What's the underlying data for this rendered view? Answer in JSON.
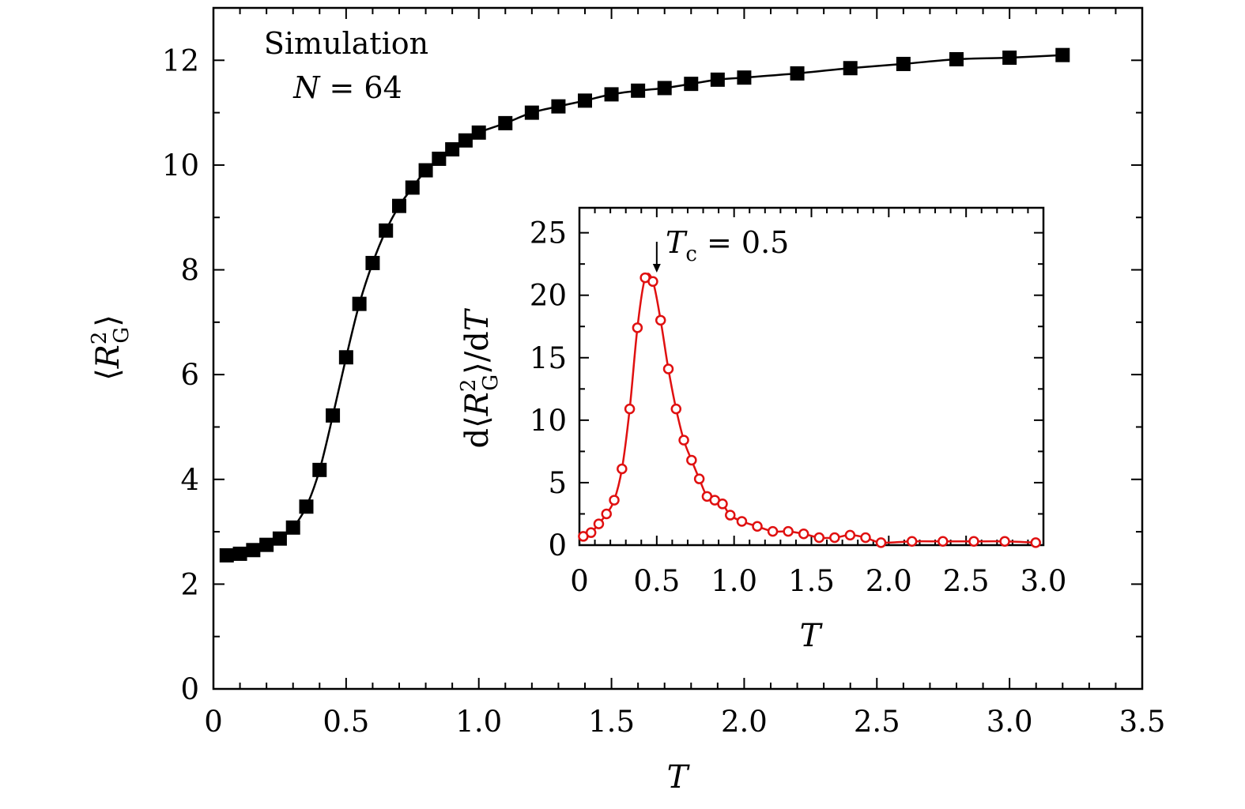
{
  "chart_data": [
    {
      "type": "line",
      "xlabel": "T",
      "ylabel": "⟨R²_G⟩",
      "ylabel_parts": {
        "open": "⟨",
        "symbol": "R",
        "superscript": "2",
        "subscript": "G",
        "close": "⟩"
      },
      "xlim": [
        0,
        3.5
      ],
      "ylim": [
        0,
        13
      ],
      "xticks": [
        "0",
        "0.5",
        "1.0",
        "1.5",
        "2.0",
        "2.5",
        "3.0",
        "3.5"
      ],
      "xtick_values": [
        0,
        0.5,
        1.0,
        1.5,
        2.0,
        2.5,
        3.0,
        3.5
      ],
      "yticks": [
        "0",
        "2",
        "4",
        "6",
        "8",
        "10",
        "12"
      ],
      "ytick_values": [
        0,
        2,
        4,
        6,
        8,
        10,
        12
      ],
      "annotations": [
        "Simulation",
        "N = 64"
      ],
      "annotation_parts": {
        "line1": "Simulation",
        "line2_symbol": "N",
        "line2_rest": " = 64"
      },
      "grid": false,
      "series": [
        {
          "marker": "filled-square",
          "color": "#000000",
          "x": [
            0.05,
            0.1,
            0.15,
            0.2,
            0.25,
            0.3,
            0.35,
            0.4,
            0.45,
            0.5,
            0.55,
            0.6,
            0.65,
            0.7,
            0.75,
            0.8,
            0.85,
            0.9,
            0.95,
            1.0,
            1.1,
            1.2,
            1.3,
            1.4,
            1.5,
            1.6,
            1.7,
            1.8,
            1.9,
            2.0,
            2.2,
            2.4,
            2.6,
            2.8,
            3.0,
            3.2
          ],
          "y": [
            2.55,
            2.58,
            2.65,
            2.75,
            2.87,
            3.08,
            3.48,
            4.18,
            5.22,
            6.33,
            7.35,
            8.13,
            8.75,
            9.22,
            9.57,
            9.9,
            10.12,
            10.3,
            10.47,
            10.62,
            10.8,
            11.0,
            11.12,
            11.23,
            11.35,
            11.42,
            11.47,
            11.55,
            11.63,
            11.67,
            11.75,
            11.85,
            11.93,
            12.02,
            12.05,
            12.1
          ]
        }
      ]
    },
    {
      "type": "line",
      "xlabel": "T",
      "ylabel": "d⟨R²_G⟩/dT",
      "ylabel_parts": {
        "prefix": "d⟨",
        "symbol": "R",
        "superscript": "2",
        "subscript": "G",
        "suffix": "⟩/d",
        "var": "T"
      },
      "xlim": [
        0,
        3.0
      ],
      "ylim": [
        0,
        27
      ],
      "xticks": [
        "0",
        "0.5",
        "1.0",
        "1.5",
        "2.0",
        "2.5",
        "3.0"
      ],
      "xtick_values": [
        0,
        0.5,
        1.0,
        1.5,
        2.0,
        2.5,
        3.0
      ],
      "yticks": [
        "0",
        "5",
        "10",
        "15",
        "20",
        "25"
      ],
      "ytick_values": [
        0,
        5,
        10,
        15,
        20,
        25
      ],
      "annotations": [
        "Tc = 0.5"
      ],
      "annotation_parts": {
        "symbol": "T",
        "subscript": "c",
        "rest": " = 0.5"
      },
      "arrow_at": 0.5,
      "grid": false,
      "series": [
        {
          "marker": "open-circle",
          "color": "#e01010",
          "x": [
            0.025,
            0.075,
            0.125,
            0.175,
            0.225,
            0.275,
            0.325,
            0.375,
            0.425,
            0.475,
            0.525,
            0.575,
            0.625,
            0.675,
            0.725,
            0.775,
            0.825,
            0.875,
            0.925,
            0.975,
            1.05,
            1.15,
            1.25,
            1.35,
            1.45,
            1.55,
            1.65,
            1.75,
            1.85,
            1.95,
            2.15,
            2.35,
            2.55,
            2.75,
            2.95
          ],
          "y": [
            0.7,
            1.0,
            1.7,
            2.5,
            3.6,
            6.1,
            10.9,
            17.4,
            21.4,
            21.1,
            18.0,
            14.1,
            10.9,
            8.4,
            6.8,
            5.3,
            3.9,
            3.6,
            3.3,
            2.4,
            1.9,
            1.5,
            1.1,
            1.1,
            0.9,
            0.6,
            0.6,
            0.8,
            0.6,
            0.2,
            0.3,
            0.3,
            0.3,
            0.3,
            0.2
          ]
        }
      ]
    }
  ]
}
